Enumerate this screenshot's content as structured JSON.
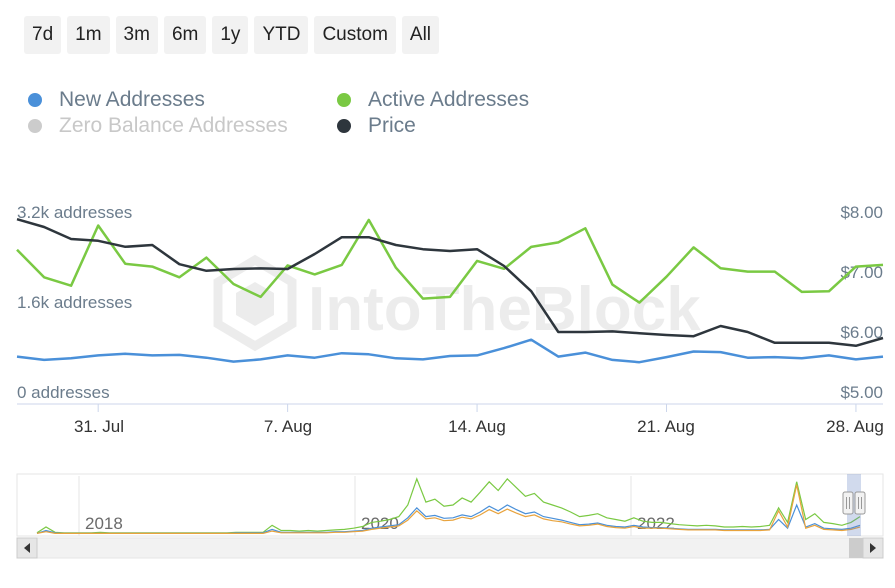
{
  "range_buttons": [
    "7d",
    "1m",
    "3m",
    "6m",
    "1y",
    "YTD",
    "Custom",
    "All"
  ],
  "legend": [
    {
      "label": "New Addresses",
      "color": "#4a90d9",
      "visible": true
    },
    {
      "label": "Active Addresses",
      "color": "#7ac943",
      "visible": true
    },
    {
      "label": "Zero Balance Addresses",
      "color": "#cccccc",
      "visible": false
    },
    {
      "label": "Price",
      "color": "#2e363d",
      "visible": true
    }
  ],
  "watermark": "IntoTheBlock",
  "navigator": {
    "year_labels": [
      "2018",
      "2020",
      "2022"
    ]
  },
  "chart_data": {
    "type": "line",
    "x": [
      "Jul 28",
      "Jul 29",
      "Jul 30",
      "Jul 31",
      "Aug 1",
      "Aug 2",
      "Aug 3",
      "Aug 4",
      "Aug 5",
      "Aug 6",
      "Aug 7",
      "Aug 8",
      "Aug 9",
      "Aug 10",
      "Aug 11",
      "Aug 12",
      "Aug 13",
      "Aug 14",
      "Aug 15",
      "Aug 16",
      "Aug 17",
      "Aug 18",
      "Aug 19",
      "Aug 20",
      "Aug 21",
      "Aug 22",
      "Aug 23",
      "Aug 24",
      "Aug 25",
      "Aug 26",
      "Aug 27",
      "Aug 28",
      "Aug 29"
    ],
    "x_tick_labels": [
      "31. Jul",
      "7. Aug",
      "14. Aug",
      "21. Aug",
      "28. Aug"
    ],
    "y_left": {
      "tick_labels": [
        "0 addresses",
        "1.6k addresses",
        "3.2k addresses"
      ],
      "range": [
        0,
        3200
      ]
    },
    "y_right": {
      "tick_labels": [
        "$5.00",
        "$6.00",
        "$7.00",
        "$8.00"
      ],
      "range": [
        5,
        8
      ]
    },
    "series": [
      {
        "name": "Active Addresses",
        "color": "#7ac943",
        "axis": "left",
        "values": [
          2530,
          2040,
          1890,
          2960,
          2280,
          2230,
          2040,
          2390,
          1920,
          1690,
          2250,
          2090,
          2260,
          3060,
          2210,
          1660,
          1690,
          2330,
          2190,
          2580,
          2660,
          2910,
          1910,
          1590,
          2050,
          2570,
          2200,
          2140,
          2140,
          1780,
          1790,
          2230,
          2260
        ]
      },
      {
        "name": "New Addresses",
        "color": "#4a90d9",
        "axis": "left",
        "values": [
          630,
          570,
          600,
          650,
          680,
          650,
          660,
          610,
          540,
          580,
          650,
          610,
          690,
          670,
          600,
          580,
          640,
          650,
          780,
          930,
          630,
          700,
          570,
          530,
          620,
          720,
          710,
          610,
          620,
          600,
          650,
          580,
          630
        ]
      },
      {
        "name": "Price",
        "color": "#2e363d",
        "axis": "right",
        "values": [
          7.88,
          7.75,
          7.55,
          7.52,
          7.42,
          7.45,
          7.13,
          7.02,
          7.05,
          7.06,
          7.05,
          7.3,
          7.58,
          7.58,
          7.45,
          7.38,
          7.35,
          7.38,
          7.1,
          6.68,
          6.0,
          6.0,
          6.01,
          5.98,
          5.95,
          5.93,
          6.1,
          6.0,
          5.82,
          5.82,
          5.82,
          5.77,
          5.9
        ]
      }
    ],
    "grid": false,
    "legend_position": "top-left",
    "navigator_series": [
      {
        "name": "Active Addresses",
        "color": "#7ac943",
        "values": [
          0.02,
          0.12,
          0.03,
          0.02,
          0.02,
          0.02,
          0.02,
          0.03,
          0.02,
          0.02,
          0.02,
          0.02,
          0.02,
          0.02,
          0.02,
          0.02,
          0.02,
          0.02,
          0.02,
          0.02,
          0.02,
          0.02,
          0.03,
          0.03,
          0.03,
          0.03,
          0.15,
          0.06,
          0.06,
          0.05,
          0.06,
          0.05,
          0.06,
          0.07,
          0.08,
          0.1,
          0.13,
          0.2,
          0.22,
          0.25,
          0.3,
          0.5,
          0.95,
          0.55,
          0.6,
          0.48,
          0.5,
          0.62,
          0.55,
          0.72,
          0.9,
          0.75,
          0.95,
          0.8,
          0.65,
          0.7,
          0.55,
          0.5,
          0.45,
          0.38,
          0.3,
          0.32,
          0.35,
          0.28,
          0.25,
          0.22,
          0.28,
          0.22,
          0.2,
          0.2,
          0.18,
          0.16,
          0.15,
          0.14,
          0.15,
          0.14,
          0.12,
          0.12,
          0.13,
          0.12,
          0.13,
          0.15,
          0.45,
          0.2,
          0.9,
          0.25,
          0.35,
          0.2,
          0.18,
          0.15,
          0.2,
          0.3
        ]
      },
      {
        "name": "New Addresses",
        "color": "#4a90d9",
        "values": [
          0.01,
          0.06,
          0.02,
          0.01,
          0.01,
          0.01,
          0.01,
          0.01,
          0.01,
          0.01,
          0.01,
          0.01,
          0.01,
          0.01,
          0.01,
          0.01,
          0.01,
          0.01,
          0.01,
          0.01,
          0.01,
          0.01,
          0.02,
          0.02,
          0.02,
          0.02,
          0.08,
          0.03,
          0.03,
          0.03,
          0.03,
          0.03,
          0.03,
          0.04,
          0.04,
          0.05,
          0.06,
          0.1,
          0.12,
          0.14,
          0.16,
          0.28,
          0.45,
          0.3,
          0.32,
          0.27,
          0.28,
          0.33,
          0.3,
          0.38,
          0.48,
          0.4,
          0.5,
          0.42,
          0.35,
          0.38,
          0.3,
          0.27,
          0.24,
          0.2,
          0.16,
          0.17,
          0.19,
          0.15,
          0.13,
          0.12,
          0.15,
          0.12,
          0.11,
          0.11,
          0.1,
          0.09,
          0.08,
          0.08,
          0.08,
          0.08,
          0.07,
          0.07,
          0.07,
          0.07,
          0.07,
          0.08,
          0.25,
          0.1,
          0.5,
          0.12,
          0.18,
          0.1,
          0.09,
          0.08,
          0.1,
          0.15
        ]
      },
      {
        "name": "Price",
        "color": "#e8a33d",
        "values": [
          0.01,
          0.04,
          0.01,
          0.01,
          0.01,
          0.01,
          0.01,
          0.01,
          0.01,
          0.01,
          0.01,
          0.01,
          0.01,
          0.01,
          0.01,
          0.01,
          0.01,
          0.01,
          0.01,
          0.01,
          0.01,
          0.01,
          0.01,
          0.01,
          0.01,
          0.01,
          0.05,
          0.02,
          0.02,
          0.02,
          0.02,
          0.02,
          0.02,
          0.03,
          0.03,
          0.04,
          0.05,
          0.08,
          0.1,
          0.12,
          0.14,
          0.24,
          0.4,
          0.26,
          0.28,
          0.23,
          0.24,
          0.29,
          0.26,
          0.33,
          0.42,
          0.35,
          0.43,
          0.36,
          0.3,
          0.33,
          0.26,
          0.23,
          0.21,
          0.17,
          0.14,
          0.15,
          0.17,
          0.13,
          0.11,
          0.1,
          0.13,
          0.1,
          0.1,
          0.1,
          0.09,
          0.08,
          0.07,
          0.07,
          0.07,
          0.07,
          0.06,
          0.06,
          0.06,
          0.06,
          0.06,
          0.07,
          0.4,
          0.12,
          0.85,
          0.1,
          0.15,
          0.08,
          0.07,
          0.06,
          0.08,
          0.12
        ]
      }
    ]
  }
}
